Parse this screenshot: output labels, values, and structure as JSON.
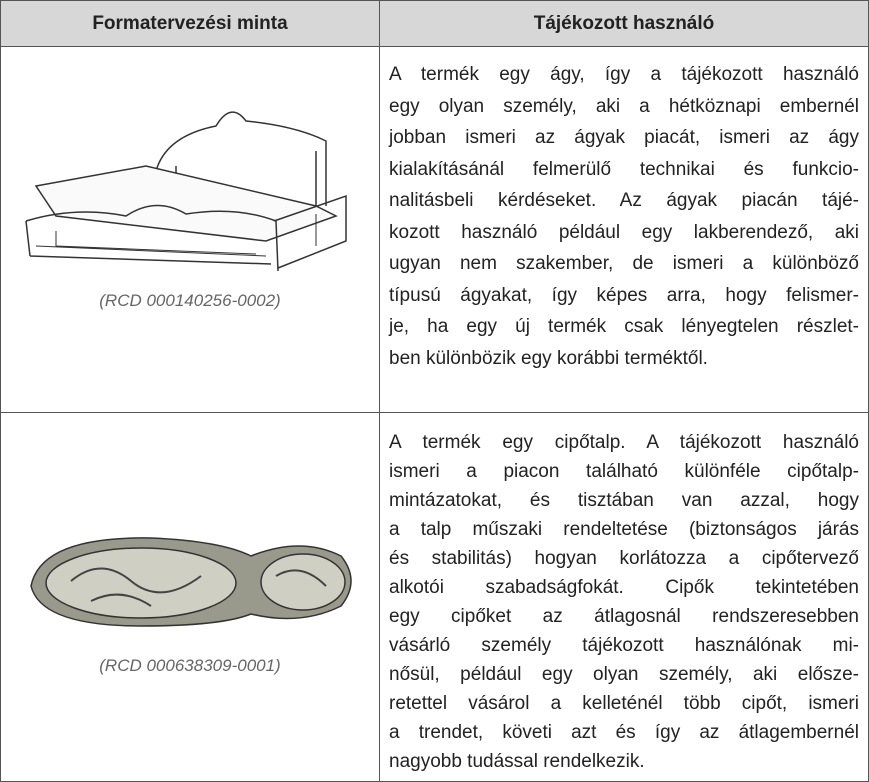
{
  "table": {
    "header": [
      "Formatervezési minta",
      "Tájékozott használó"
    ],
    "rows": [
      {
        "caption": "(RCD 000140256-0002)",
        "lines": [
          "A termék egy ágy, így a tájékozott használó",
          "egy olyan személy, aki a hétköznapi embernél",
          "jobban ismeri az ágyak piacát, ismeri az ágy",
          "kialakításánál felmerülő technikai és funkcio-",
          "nalitásbeli kérdéseket. Az ágyak piacán tájé-",
          "kozott használó például egy lakberendező, aki",
          "ugyan nem szakember, de ismeri a különböző",
          "típusú ágyakat, így képes arra, hogy felismer-",
          "je, ha egy új termék csak lényegtelen részlet-",
          "ben különbözik egy korábbi terméktől."
        ]
      },
      {
        "caption": "(RCD 000638309-0001)",
        "lines": [
          "A termék egy cipőtalp. A tájékozott használó",
          "ismeri a piacon található különféle cipőtalp-",
          "mintázatokat, és tisztában van azzal, hogy",
          "a talp műszaki rendeltetése (biztonságos járás",
          "és stabilitás) hogyan korlátozza a cipőtervező",
          "alkotói szabadságfokát. Cipők tekintetében",
          "egy cipőket az átlagosnál rendszeresebben",
          "vásárló személy tájékozott használónak mi-",
          "nősül, például egy olyan személy, aki elősze-",
          "retettel vásárol a kelleténél több cipőt, ismeri",
          "a trendet, követi azt és így az átlagembernél",
          "nagyobb tudással rendelkezik."
        ]
      }
    ]
  }
}
